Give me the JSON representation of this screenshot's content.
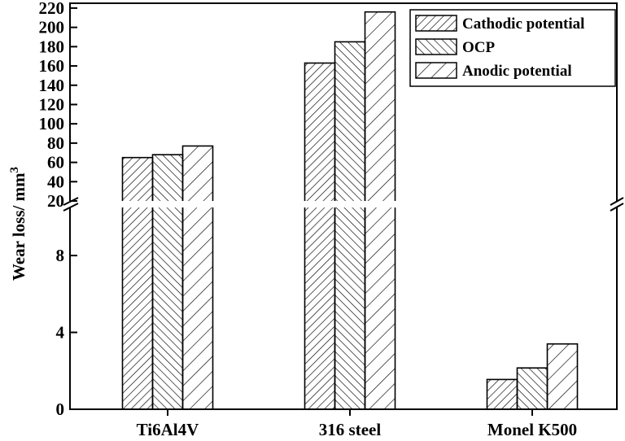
{
  "chart_data": {
    "type": "bar",
    "ylabel": "Wear loss/ mm",
    "ylabel_superscript": "3",
    "categories": [
      "Ti6Al4V",
      "316 steel",
      "Monel K500"
    ],
    "series": [
      {
        "name": "Cathodic potential",
        "values": [
          65,
          163,
          1.55
        ]
      },
      {
        "name": "OCP",
        "values": [
          68,
          185,
          2.15
        ]
      },
      {
        "name": "Anodic potential",
        "values": [
          77,
          216,
          3.4
        ]
      }
    ],
    "axis_break": true,
    "lower_range": [
      0,
      10.5
    ],
    "lower_ticks": [
      0,
      4,
      8
    ],
    "upper_range": [
      20,
      225
    ],
    "upper_ticks": [
      20,
      40,
      60,
      80,
      100,
      120,
      140,
      160,
      180,
      200,
      220
    ],
    "legend_position": "top-right",
    "grid": false
  }
}
